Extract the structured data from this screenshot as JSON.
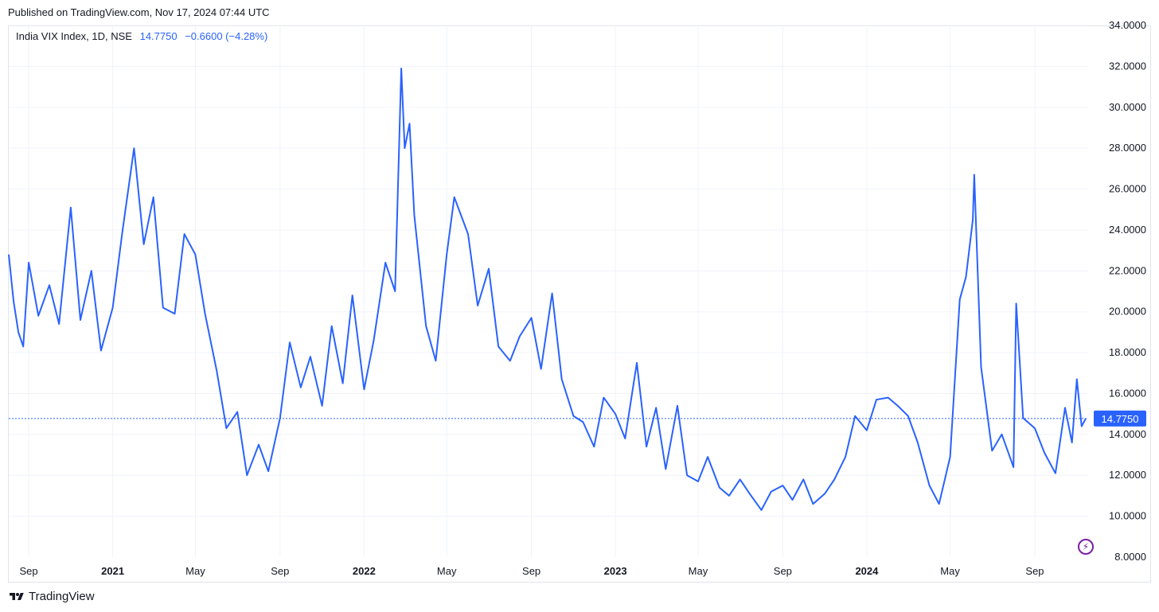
{
  "header": {
    "published": "Published on TradingView.com, Nov 17, 2024 07:44 UTC"
  },
  "legend": {
    "symbol": "India VIX Index, 1D, NSE",
    "value": "14.7750",
    "change": "−0.6600 (−4.28%)"
  },
  "footer": {
    "brand": "TradingView",
    "logo_icon": "tradingview-logo-icon",
    "bolt_icon": "lightning-icon"
  },
  "colors": {
    "line": "#2962ff",
    "grid": "#f0f3fa",
    "price_label_bg": "#2962ff",
    "logo": "#131722"
  },
  "chart_data": {
    "type": "line",
    "title": "India VIX Index, 1D, NSE",
    "last_value": 14.775,
    "ylim": [
      8,
      34
    ],
    "yticks": [
      "8.0000",
      "10.0000",
      "12.0000",
      "14.0000",
      "16.0000",
      "18.0000",
      "20.0000",
      "22.0000",
      "24.0000",
      "26.0000",
      "28.0000",
      "30.0000",
      "32.0000",
      "34.0000"
    ],
    "xticks": [
      {
        "label": "Sep",
        "x": "2020-09-01",
        "bold": false
      },
      {
        "label": "2021",
        "x": "2021-01-01",
        "bold": true
      },
      {
        "label": "May",
        "x": "2021-05-01",
        "bold": false
      },
      {
        "label": "Sep",
        "x": "2021-09-01",
        "bold": false
      },
      {
        "label": "2022",
        "x": "2022-01-01",
        "bold": true
      },
      {
        "label": "May",
        "x": "2022-05-01",
        "bold": false
      },
      {
        "label": "Sep",
        "x": "2022-09-01",
        "bold": false
      },
      {
        "label": "2023",
        "x": "2023-01-01",
        "bold": true
      },
      {
        "label": "May",
        "x": "2023-05-01",
        "bold": false
      },
      {
        "label": "Sep",
        "x": "2023-09-01",
        "bold": false
      },
      {
        "label": "2024",
        "x": "2024-01-01",
        "bold": true
      },
      {
        "label": "May",
        "x": "2024-05-01",
        "bold": false
      },
      {
        "label": "Sep",
        "x": "2024-09-01",
        "bold": false
      }
    ],
    "grid": true,
    "series": [
      {
        "x": [
          "2020-08-03",
          "2020-08-10",
          "2020-08-17",
          "2020-08-24",
          "2020-09-01",
          "2020-09-15",
          "2020-10-01",
          "2020-10-15",
          "2020-11-01",
          "2020-11-15",
          "2020-12-01",
          "2020-12-15",
          "2021-01-01",
          "2021-01-15",
          "2021-02-01",
          "2021-02-15",
          "2021-03-01",
          "2021-03-15",
          "2021-04-01",
          "2021-04-15",
          "2021-05-01",
          "2021-05-15",
          "2021-06-01",
          "2021-06-15",
          "2021-07-01",
          "2021-07-15",
          "2021-08-01",
          "2021-08-15",
          "2021-09-01",
          "2021-09-15",
          "2021-10-01",
          "2021-10-15",
          "2021-11-01",
          "2021-11-15",
          "2021-12-01",
          "2021-12-15",
          "2022-01-01",
          "2022-01-15",
          "2022-02-01",
          "2022-02-15",
          "2022-02-24",
          "2022-03-01",
          "2022-03-08",
          "2022-03-15",
          "2022-04-01",
          "2022-04-15",
          "2022-05-01",
          "2022-05-12",
          "2022-06-01",
          "2022-06-15",
          "2022-07-01",
          "2022-07-15",
          "2022-08-01",
          "2022-08-15",
          "2022-09-01",
          "2022-09-15",
          "2022-10-01",
          "2022-10-15",
          "2022-11-01",
          "2022-11-15",
          "2022-12-01",
          "2022-12-15",
          "2023-01-01",
          "2023-01-15",
          "2023-02-01",
          "2023-02-15",
          "2023-03-01",
          "2023-03-15",
          "2023-04-01",
          "2023-04-15",
          "2023-05-01",
          "2023-05-15",
          "2023-06-01",
          "2023-06-15",
          "2023-07-01",
          "2023-07-15",
          "2023-08-01",
          "2023-08-15",
          "2023-09-01",
          "2023-09-15",
          "2023-10-01",
          "2023-10-15",
          "2023-11-01",
          "2023-11-15",
          "2023-12-01",
          "2023-12-15",
          "2024-01-01",
          "2024-01-15",
          "2024-02-01",
          "2024-02-15",
          "2024-03-01",
          "2024-03-15",
          "2024-04-01",
          "2024-04-15",
          "2024-05-01",
          "2024-05-15",
          "2024-05-24",
          "2024-06-03",
          "2024-06-05",
          "2024-06-15",
          "2024-07-01",
          "2024-07-15",
          "2024-08-01",
          "2024-08-05",
          "2024-08-15",
          "2024-09-01",
          "2024-09-15",
          "2024-10-01",
          "2024-10-15",
          "2024-10-25",
          "2024-11-01",
          "2024-11-08",
          "2024-11-14"
        ],
        "y": [
          22.8,
          20.5,
          19.0,
          18.3,
          22.4,
          19.8,
          21.3,
          19.4,
          25.1,
          19.6,
          22.0,
          18.1,
          20.2,
          23.9,
          28.0,
          23.3,
          25.6,
          20.2,
          19.9,
          23.8,
          22.8,
          19.9,
          17.1,
          14.3,
          15.1,
          12.0,
          13.5,
          12.2,
          14.8,
          18.5,
          16.3,
          17.8,
          15.4,
          19.3,
          16.5,
          20.8,
          16.2,
          18.6,
          22.4,
          21.0,
          31.9,
          28.0,
          29.2,
          24.7,
          19.3,
          17.6,
          22.8,
          25.6,
          23.8,
          20.3,
          22.1,
          18.3,
          17.6,
          18.8,
          19.7,
          17.2,
          20.9,
          16.7,
          14.9,
          14.6,
          13.4,
          15.8,
          15.0,
          13.8,
          17.5,
          13.4,
          15.3,
          12.3,
          15.4,
          12.0,
          11.7,
          12.9,
          11.4,
          11.0,
          11.8,
          11.1,
          10.3,
          11.2,
          11.5,
          10.8,
          11.8,
          10.6,
          11.1,
          11.8,
          12.9,
          14.9,
          14.2,
          15.7,
          15.8,
          15.4,
          14.9,
          13.6,
          11.5,
          10.6,
          12.9,
          20.6,
          21.7,
          24.5,
          26.7,
          17.3,
          13.2,
          14.0,
          12.4,
          20.4,
          14.8,
          14.3,
          13.1,
          12.1,
          15.3,
          13.6,
          16.7,
          14.4,
          14.775
        ]
      }
    ]
  }
}
